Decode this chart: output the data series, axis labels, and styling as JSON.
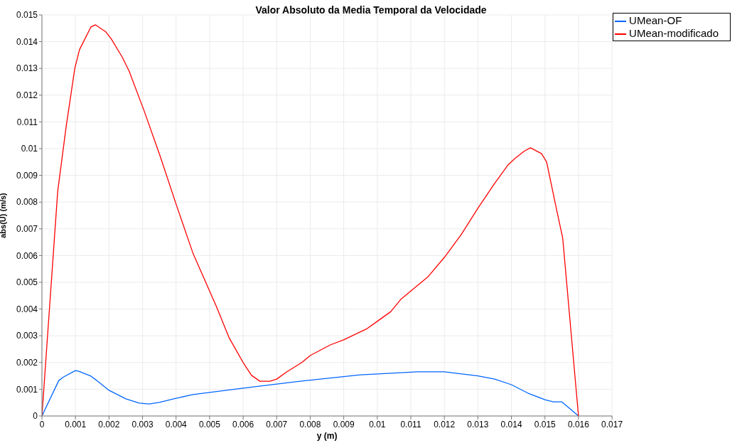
{
  "chart_data": {
    "type": "line",
    "title": "Valor Absoluto da Media Temporal da Velocidade",
    "xlabel": "y (m)",
    "ylabel": "abs(U) (m/s)",
    "xlim": [
      0,
      0.017
    ],
    "xticks": [
      0,
      0.001,
      0.002,
      0.003,
      0.004,
      0.005,
      0.006,
      0.007,
      0.008,
      0.009,
      0.01,
      0.011,
      0.012,
      0.013,
      0.014,
      0.015,
      0.016,
      0.017
    ],
    "ylim": [
      0,
      0.015
    ],
    "yticks": [
      0,
      0.001,
      0.002,
      0.003,
      0.004,
      0.005,
      0.006,
      0.007,
      0.008,
      0.009,
      0.01,
      0.011,
      0.012,
      0.013,
      0.014,
      0.015
    ],
    "grid": true,
    "legend": "top right",
    "marker": "none",
    "line_style": "solid",
    "series": [
      {
        "name": "UMean-OF",
        "color": "#0066ff",
        "x": [
          0,
          0.0005,
          0.00063,
          0.001,
          0.0011,
          0.00146,
          0.0016,
          0.002,
          0.0025,
          0.0029,
          0.0032,
          0.0035,
          0.004,
          0.0045,
          0.006,
          0.0077,
          0.0095,
          0.0112,
          0.012,
          0.013,
          0.0135,
          0.014,
          0.0145,
          0.015,
          0.01525,
          0.0155,
          0.016
        ],
        "values": [
          0,
          0.00132,
          0.00145,
          0.0017,
          0.00167,
          0.00149,
          0.00136,
          0.00096,
          0.00064,
          0.00048,
          0.00045,
          0.00051,
          0.00066,
          0.0008,
          0.00104,
          0.0013,
          0.00154,
          0.00165,
          0.00165,
          0.0015,
          0.00138,
          0.00117,
          0.00085,
          0.00061,
          0.00053,
          0.00053,
          0
        ]
      },
      {
        "name": "UMean-modificado",
        "color": "#ff0000",
        "x": [
          0,
          0.00047,
          0.00072,
          0.00098,
          0.00112,
          0.00146,
          0.0016,
          0.00191,
          0.00207,
          0.00239,
          0.0026,
          0.00304,
          0.00353,
          0.00402,
          0.0045,
          0.0052,
          0.00558,
          0.006,
          0.00625,
          0.0065,
          0.0068,
          0.007,
          0.0073,
          0.00775,
          0.008,
          0.0086,
          0.009,
          0.0097,
          0.01,
          0.0104,
          0.0107,
          0.0115,
          0.012,
          0.0125,
          0.013,
          0.0135,
          0.0139,
          0.0141,
          0.0144,
          0.01457,
          0.0149,
          0.01505,
          0.01535,
          0.01553,
          0.016
        ],
        "values": [
          0,
          0.0084,
          0.0108,
          0.013,
          0.0137,
          0.01455,
          0.01463,
          0.01436,
          0.0141,
          0.01343,
          0.0129,
          0.01144,
          0.0097,
          0.00785,
          0.0061,
          0.0041,
          0.00293,
          0.002,
          0.00152,
          0.0013,
          0.0013,
          0.00138,
          0.00165,
          0.002,
          0.00226,
          0.00266,
          0.00285,
          0.00327,
          0.00354,
          0.0039,
          0.00436,
          0.00519,
          0.00593,
          0.00678,
          0.00777,
          0.0087,
          0.00939,
          0.00963,
          0.00992,
          0.01003,
          0.00981,
          0.0095,
          0.0077,
          0.00665,
          0
        ]
      }
    ]
  }
}
